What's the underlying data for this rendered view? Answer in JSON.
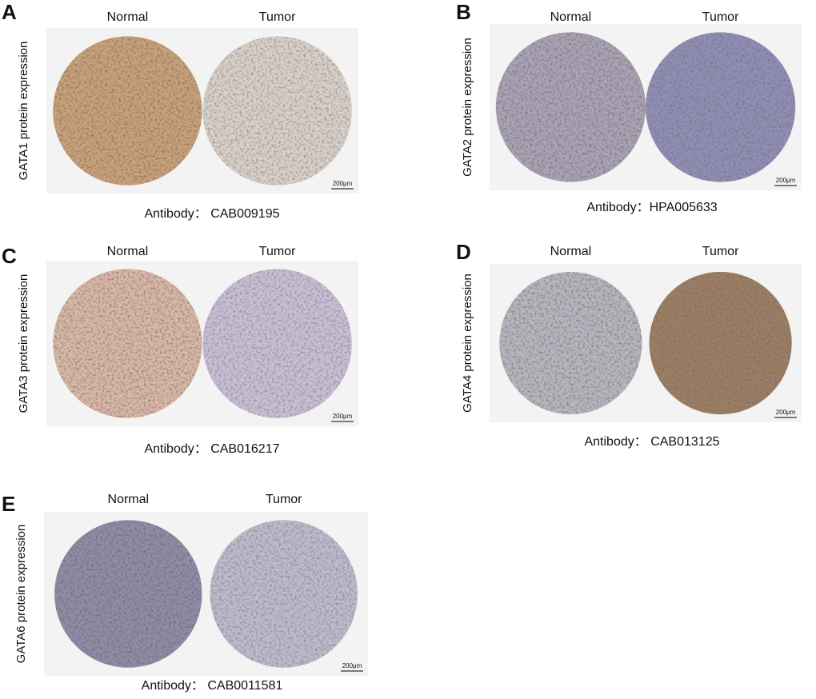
{
  "panels": [
    {
      "letter": "A",
      "column_labels": [
        "Normal",
        "Tumor"
      ],
      "y_label": "GATA1 protein expression",
      "scale_bar": "200μm",
      "antibody": "Antibody：  CAB009195"
    },
    {
      "letter": "B",
      "column_labels": [
        "Normal",
        "Tumor"
      ],
      "y_label": "GATA2 protein expression",
      "scale_bar": "200μm",
      "antibody": "Antibody：HPA005633"
    },
    {
      "letter": "C",
      "column_labels": [
        "Normal",
        "Tumor"
      ],
      "y_label": "GATA3 protein expression",
      "scale_bar": "200μm",
      "antibody": "Antibody：  CAB016217"
    },
    {
      "letter": "D",
      "column_labels": [
        "Normal",
        "Tumor"
      ],
      "y_label": "GATA4 protein expression",
      "scale_bar": "200μm",
      "antibody": "Antibody：  CAB013125"
    },
    {
      "letter": "E",
      "column_labels": [
        "Normal",
        "Tumor"
      ],
      "y_label": "GATA6 protein expression",
      "scale_bar": "200μm",
      "antibody": "Antibody：  CAB0011581"
    }
  ]
}
